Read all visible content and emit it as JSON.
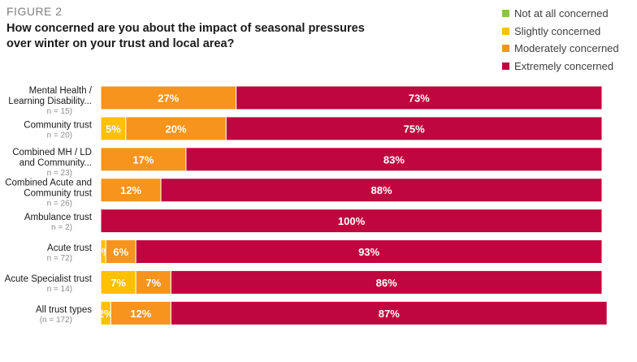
{
  "figure_label": "FIGURE 2",
  "title": "How concerned are you about the impact of seasonal pressures over winter on your trust and local area?",
  "colors": {
    "not_at_all": "#8dc63f",
    "slightly": "#ffc000",
    "moderately": "#f7941d",
    "extremely": "#c0063f"
  },
  "chart_data": {
    "type": "bar",
    "orientation": "horizontal",
    "stacked": true,
    "xlim": [
      0,
      100
    ],
    "grid": false,
    "legend_position": "top-right",
    "categories": [
      {
        "label": [
          "Mental Health /",
          "Learning Disability..."
        ],
        "n": "n = 15)"
      },
      {
        "label": [
          "Community trust"
        ],
        "n": "n = 20)"
      },
      {
        "label": [
          "Combined MH / LD",
          "and Community..."
        ],
        "n": "n = 23)"
      },
      {
        "label": [
          "Combined Acute and",
          "Community trust"
        ],
        "n": "n = 26)"
      },
      {
        "label": [
          "Ambulance trust"
        ],
        "n": "n = 2)"
      },
      {
        "label": [
          "Acute trust"
        ],
        "n": "n = 72)"
      },
      {
        "label": [
          "Acute Specialist trust"
        ],
        "n": "n = 14)"
      },
      {
        "label": [
          "All trust types"
        ],
        "n": "(n = 172)"
      }
    ],
    "series": [
      {
        "name": "Not at all concerned",
        "color_key": "not_at_all",
        "values": [
          0,
          0,
          0,
          0,
          0,
          0,
          0,
          0
        ],
        "labels": [
          "",
          "",
          "",
          "",
          "",
          "",
          "",
          ""
        ]
      },
      {
        "name": "Slightly concerned",
        "color_key": "slightly",
        "values": [
          0,
          5,
          0,
          0,
          0,
          1,
          7,
          2
        ],
        "labels": [
          "",
          "5%",
          "",
          "",
          "",
          "1%",
          "7%",
          "2%"
        ]
      },
      {
        "name": "Moderately concerned",
        "color_key": "moderately",
        "values": [
          27,
          20,
          17,
          12,
          0,
          6,
          7,
          12
        ],
        "labels": [
          "27%",
          "20%",
          "17%",
          "12%",
          "",
          "6%",
          "7%",
          "12%"
        ]
      },
      {
        "name": "Extremely concerned",
        "color_key": "extremely",
        "values": [
          73,
          75,
          83,
          88,
          100,
          93,
          86,
          87
        ],
        "labels": [
          "73%",
          "75%",
          "83%",
          "88%",
          "100%",
          "93%",
          "86%",
          "87%"
        ]
      }
    ]
  }
}
